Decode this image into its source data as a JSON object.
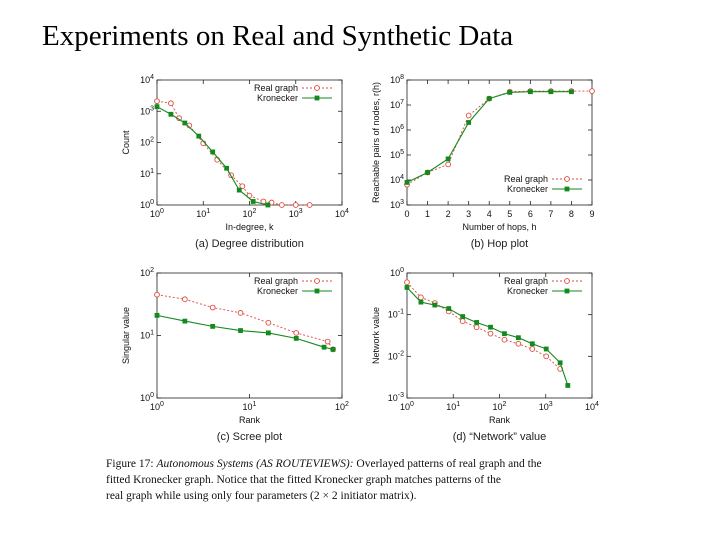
{
  "slide": {
    "title": "Experiments on Real and Synthetic Data"
  },
  "caption": {
    "figure_label": "Figure 17:",
    "figure_subject": "Autonomous Systems (AS ROUTEVIEWS):",
    "text_line1": "Overlayed patterns of real graph and the",
    "text_line2": "fitted Kronecker graph. Notice that the fitted Kronecker graph matches patterns of the",
    "text_line3": "real graph while using only four parameters (2 × 2 initiator matrix)."
  },
  "colors": {
    "real": "#e0483c",
    "kronecker": "#138a1e"
  },
  "chart_data": [
    {
      "type": "line",
      "subtitle": "(a) Degree distribution",
      "xlabel": "In-degree, k",
      "ylabel": "Count",
      "xscale": "log",
      "yscale": "log",
      "xlim": [
        1,
        10000
      ],
      "ylim": [
        1,
        10000
      ],
      "xticks": [
        "10^0",
        "10^1",
        "10^2",
        "10^3",
        "10^4"
      ],
      "yticks": [
        "10^0",
        "10^1",
        "10^2",
        "10^3",
        "10^4"
      ],
      "legend_position": "top-right",
      "series": [
        {
          "name": "Real graph",
          "marker": "open-circle",
          "x": [
            1,
            2,
            3,
            5,
            10,
            20,
            40,
            70,
            100,
            200,
            300,
            500,
            1000,
            2000
          ],
          "y": [
            2100,
            1800,
            600,
            350,
            95,
            28,
            9,
            4,
            2,
            1.3,
            1.2,
            1,
            1,
            1
          ]
        },
        {
          "name": "Kronecker",
          "marker": "filled-square",
          "x": [
            1,
            2,
            4,
            8,
            16,
            32,
            60,
            120,
            250
          ],
          "y": [
            1400,
            800,
            420,
            160,
            50,
            15,
            3,
            1.3,
            1
          ]
        }
      ]
    },
    {
      "type": "line",
      "subtitle": "(b) Hop plot",
      "xlabel": "Number of hops, h",
      "ylabel": "Reachable pairs of nodes, r(h)",
      "xscale": "linear",
      "yscale": "log",
      "xlim": [
        0,
        9
      ],
      "ylim": [
        1000,
        100000000
      ],
      "xticks": [
        "0",
        "1",
        "2",
        "3",
        "4",
        "5",
        "6",
        "7",
        "8",
        "9"
      ],
      "yticks": [
        "10^3",
        "10^4",
        "10^5",
        "10^6",
        "10^7",
        "10^8"
      ],
      "legend_position": "bottom-right",
      "series": [
        {
          "name": "Real graph",
          "marker": "open-circle",
          "x": [
            0,
            1,
            2,
            3,
            4,
            5,
            6,
            7,
            8,
            9
          ],
          "y": [
            6500,
            20000,
            42000,
            3800000,
            18000000,
            34000000,
            36000000,
            36000000,
            36000000,
            36000000
          ]
        },
        {
          "name": "Kronecker",
          "marker": "filled-square",
          "x": [
            0,
            1,
            2,
            3,
            4,
            5,
            6,
            7,
            8
          ],
          "y": [
            8000,
            20000,
            70000,
            2000000,
            18000000,
            32000000,
            34000000,
            34000000,
            34000000
          ]
        }
      ]
    },
    {
      "type": "line",
      "subtitle": "(c) Scree plot",
      "xlabel": "Rank",
      "ylabel": "Singular value",
      "xscale": "log",
      "yscale": "log",
      "xlim": [
        1,
        100
      ],
      "ylim": [
        1,
        100
      ],
      "xticks": [
        "10^0",
        "10^1",
        "10^2"
      ],
      "yticks": [
        "10^0",
        "10^1",
        "10^2"
      ],
      "legend_position": "top-right",
      "series": [
        {
          "name": "Real graph",
          "marker": "open-circle",
          "x": [
            1,
            2,
            4,
            8,
            16,
            32,
            70,
            80
          ],
          "y": [
            45,
            38,
            28,
            23,
            16,
            11,
            8,
            6
          ]
        },
        {
          "name": "Kronecker",
          "marker": "filled-square",
          "x": [
            1,
            2,
            4,
            8,
            16,
            32,
            64,
            80
          ],
          "y": [
            21,
            17,
            14,
            12,
            11,
            9,
            6.5,
            6
          ]
        }
      ]
    },
    {
      "type": "line",
      "subtitle": "(d) “Network” value",
      "xlabel": "Rank",
      "ylabel": "Network value",
      "xscale": "log",
      "yscale": "log",
      "xlim": [
        1,
        10000
      ],
      "ylim": [
        0.001,
        1
      ],
      "xticks": [
        "10^0",
        "10^1",
        "10^2",
        "10^3",
        "10^4"
      ],
      "yticks": [
        "10^-3",
        "10^-2",
        "10^-1",
        "10^0"
      ],
      "legend_position": "top-right",
      "series": [
        {
          "name": "Real graph",
          "marker": "open-circle",
          "x": [
            1,
            2,
            4,
            8,
            16,
            32,
            64,
            128,
            256,
            512,
            1024,
            2048
          ],
          "y": [
            0.6,
            0.26,
            0.19,
            0.12,
            0.07,
            0.05,
            0.035,
            0.025,
            0.02,
            0.015,
            0.01,
            0.005
          ]
        },
        {
          "name": "Kronecker",
          "marker": "filled-square",
          "x": [
            1,
            2,
            4,
            8,
            16,
            32,
            64,
            128,
            256,
            512,
            1024,
            2048,
            3000
          ],
          "y": [
            0.45,
            0.2,
            0.17,
            0.14,
            0.09,
            0.065,
            0.05,
            0.035,
            0.028,
            0.02,
            0.015,
            0.007,
            0.002
          ]
        }
      ]
    }
  ]
}
